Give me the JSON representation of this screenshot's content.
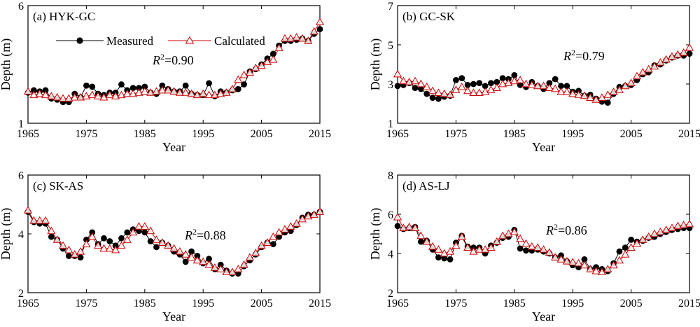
{
  "colors": {
    "measured": "#000000",
    "calculated": "#cc0000",
    "frame": "#000000"
  },
  "legend": {
    "measured": "Measured",
    "calculated": "Calculated"
  },
  "chart_data": [
    {
      "type": "line",
      "title": "(a) HYK-GC",
      "xlabel": "Year",
      "ylabel": "Depth (m)",
      "xlim": [
        1965,
        2015
      ],
      "ylim": [
        1,
        6
      ],
      "xticks": [
        1965,
        1975,
        1985,
        1995,
        2005,
        2015
      ],
      "yticks": [
        1,
        6
      ],
      "r2_prefix": "R",
      "r2_sup": "2",
      "r2_value": "=0.90",
      "x": [
        1965,
        1966,
        1967,
        1968,
        1969,
        1970,
        1971,
        1972,
        1973,
        1974,
        1975,
        1976,
        1977,
        1978,
        1979,
        1980,
        1981,
        1982,
        1983,
        1984,
        1985,
        1986,
        1987,
        1988,
        1989,
        1990,
        1991,
        1992,
        1993,
        1994,
        1995,
        1996,
        1997,
        1998,
        1999,
        2000,
        2001,
        2002,
        2003,
        2004,
        2005,
        2006,
        2007,
        2008,
        2009,
        2010,
        2011,
        2012,
        2013,
        2014,
        2015
      ],
      "series": [
        {
          "name": "Measured",
          "values": [
            2.3,
            2.4,
            2.35,
            2.4,
            2.05,
            2.0,
            1.9,
            1.9,
            2.25,
            2.1,
            2.6,
            2.55,
            2.25,
            2.2,
            2.3,
            2.3,
            2.65,
            2.4,
            2.5,
            2.5,
            2.55,
            2.3,
            2.25,
            2.6,
            2.45,
            2.35,
            2.35,
            2.6,
            2.25,
            2.2,
            2.2,
            2.7,
            2.15,
            2.35,
            2.3,
            2.4,
            2.45,
            2.65,
            3.2,
            3.3,
            3.5,
            3.75,
            3.95,
            4.3,
            4.5,
            4.5,
            4.55,
            4.6,
            4.5,
            4.8,
            5.0
          ]
        },
        {
          "name": "Calculated",
          "values": [
            2.35,
            2.2,
            2.25,
            2.2,
            2.15,
            2.1,
            2.05,
            2.05,
            2.1,
            2.1,
            2.15,
            2.2,
            2.15,
            2.1,
            2.2,
            2.15,
            2.2,
            2.25,
            2.25,
            2.3,
            2.35,
            2.3,
            2.35,
            2.4,
            2.4,
            2.35,
            2.3,
            2.3,
            2.25,
            2.2,
            2.25,
            2.2,
            2.2,
            2.25,
            2.3,
            2.45,
            2.85,
            3.05,
            3.15,
            3.35,
            3.45,
            3.6,
            3.7,
            4.2,
            4.6,
            4.6,
            4.65,
            4.6,
            4.5,
            4.9,
            5.3
          ]
        }
      ]
    },
    {
      "type": "line",
      "title": "(b) GC-SK",
      "xlabel": "Year",
      "ylabel": "Depth (m)",
      "xlim": [
        1965,
        2015
      ],
      "ylim": [
        1,
        7
      ],
      "xticks": [
        1965,
        1975,
        1985,
        1995,
        2005,
        2015
      ],
      "yticks": [
        1,
        3,
        5,
        7
      ],
      "r2_prefix": "R",
      "r2_sup": "2",
      "r2_value": "=0.79",
      "x": [
        1965,
        1966,
        1967,
        1968,
        1969,
        1970,
        1971,
        1972,
        1973,
        1974,
        1975,
        1976,
        1977,
        1978,
        1979,
        1980,
        1981,
        1982,
        1983,
        1984,
        1985,
        1986,
        1987,
        1988,
        1989,
        1990,
        1991,
        1992,
        1993,
        1994,
        1995,
        1996,
        1997,
        1998,
        1999,
        2000,
        2001,
        2002,
        2003,
        2004,
        2005,
        2006,
        2007,
        2008,
        2009,
        2010,
        2011,
        2012,
        2013,
        2014,
        2015
      ],
      "series": [
        {
          "name": "Measured",
          "values": [
            2.9,
            2.95,
            3.05,
            2.8,
            2.75,
            2.5,
            2.3,
            2.25,
            2.35,
            2.4,
            3.2,
            3.3,
            2.95,
            3.0,
            3.05,
            2.9,
            3.05,
            3.1,
            3.3,
            3.25,
            3.45,
            2.95,
            2.85,
            3.1,
            2.9,
            2.75,
            3.05,
            3.25,
            2.9,
            2.9,
            2.6,
            2.65,
            2.4,
            2.45,
            2.25,
            2.1,
            2.05,
            2.5,
            2.85,
            2.9,
            2.95,
            3.2,
            3.5,
            3.6,
            3.95,
            4.0,
            4.2,
            4.35,
            4.45,
            4.45,
            4.55
          ]
        },
        {
          "name": "Calculated",
          "values": [
            3.5,
            3.15,
            3.1,
            3.15,
            3.0,
            2.85,
            2.65,
            2.55,
            2.5,
            2.45,
            2.7,
            2.85,
            2.65,
            2.55,
            2.55,
            2.6,
            2.7,
            2.8,
            3.0,
            3.05,
            3.15,
            3.2,
            3.0,
            2.95,
            2.9,
            2.9,
            2.8,
            2.75,
            2.6,
            2.6,
            2.5,
            2.45,
            2.4,
            2.3,
            2.2,
            2.3,
            2.45,
            2.6,
            2.7,
            2.9,
            3.05,
            3.4,
            3.6,
            3.75,
            3.9,
            4.1,
            4.25,
            4.4,
            4.5,
            4.6,
            4.85
          ]
        }
      ]
    },
    {
      "type": "line",
      "title": "(c) SK-AS",
      "xlabel": "Year",
      "ylabel": "Depth (m)",
      "xlim": [
        1965,
        2015
      ],
      "ylim": [
        2,
        6
      ],
      "xticks": [
        1965,
        1975,
        1985,
        1995,
        2005,
        2015
      ],
      "yticks": [
        2,
        4,
        6
      ],
      "r2_prefix": "R",
      "r2_sup": "2",
      "r2_value": "=0.88",
      "x": [
        1965,
        1966,
        1967,
        1968,
        1969,
        1970,
        1971,
        1972,
        1973,
        1974,
        1975,
        1976,
        1977,
        1978,
        1979,
        1980,
        1981,
        1982,
        1983,
        1984,
        1985,
        1986,
        1987,
        1988,
        1989,
        1990,
        1991,
        1992,
        1993,
        1994,
        1995,
        1996,
        1997,
        1998,
        1999,
        2000,
        2001,
        2002,
        2003,
        2004,
        2005,
        2006,
        2007,
        2008,
        2009,
        2010,
        2011,
        2012,
        2013,
        2014,
        2015
      ],
      "series": [
        {
          "name": "Measured",
          "values": [
            4.75,
            4.4,
            4.35,
            4.35,
            3.9,
            3.8,
            3.5,
            3.25,
            3.25,
            3.2,
            3.8,
            4.05,
            3.65,
            3.85,
            3.75,
            3.6,
            3.85,
            4.05,
            4.15,
            4.1,
            4.05,
            3.75,
            3.55,
            3.7,
            3.6,
            3.4,
            3.3,
            3.05,
            3.4,
            3.25,
            3.0,
            3.15,
            2.8,
            2.95,
            2.75,
            2.65,
            2.65,
            2.9,
            3.1,
            3.3,
            3.55,
            3.7,
            3.65,
            3.9,
            4.05,
            4.1,
            4.3,
            4.55,
            4.65,
            4.65,
            4.75
          ]
        },
        {
          "name": "Calculated",
          "values": [
            4.8,
            4.45,
            4.45,
            4.45,
            4.1,
            3.8,
            3.6,
            3.45,
            3.3,
            3.4,
            3.65,
            3.9,
            3.6,
            3.5,
            3.5,
            3.45,
            3.6,
            3.8,
            4.05,
            4.25,
            4.25,
            4.1,
            3.8,
            3.7,
            3.6,
            3.5,
            3.4,
            3.3,
            3.2,
            3.1,
            3.05,
            2.95,
            2.85,
            2.8,
            2.7,
            2.7,
            2.8,
            2.95,
            3.2,
            3.35,
            3.6,
            3.7,
            3.9,
            4.05,
            4.15,
            4.25,
            4.35,
            4.5,
            4.6,
            4.65,
            4.75
          ]
        }
      ]
    },
    {
      "type": "line",
      "title": "(d) AS-LJ",
      "xlabel": "Year",
      "ylabel": "Depth (m)",
      "xlim": [
        1965,
        2015
      ],
      "ylim": [
        2,
        8
      ],
      "xticks": [
        1965,
        1975,
        1985,
        1995,
        2005,
        2015
      ],
      "yticks": [
        2,
        4,
        6,
        8
      ],
      "r2_prefix": "R",
      "r2_sup": "2",
      "r2_value": "=0.86",
      "x": [
        1965,
        1966,
        1967,
        1968,
        1969,
        1970,
        1971,
        1972,
        1973,
        1974,
        1975,
        1976,
        1977,
        1978,
        1979,
        1980,
        1981,
        1982,
        1983,
        1984,
        1985,
        1986,
        1987,
        1988,
        1989,
        1990,
        1991,
        1992,
        1993,
        1994,
        1995,
        1996,
        1997,
        1998,
        1999,
        2000,
        2001,
        2002,
        2003,
        2004,
        2005,
        2006,
        2007,
        2008,
        2009,
        2010,
        2011,
        2012,
        2013,
        2014,
        2015
      ],
      "series": [
        {
          "name": "Measured",
          "values": [
            5.4,
            5.25,
            5.3,
            5.35,
            4.6,
            4.65,
            4.2,
            3.8,
            3.75,
            3.7,
            4.55,
            4.9,
            4.35,
            4.3,
            4.3,
            4.0,
            4.4,
            4.55,
            4.8,
            4.85,
            5.2,
            4.25,
            4.15,
            4.15,
            4.2,
            4.1,
            4.0,
            3.8,
            3.9,
            3.6,
            3.4,
            3.3,
            3.7,
            3.2,
            3.3,
            3.2,
            3.1,
            3.5,
            4.1,
            4.3,
            4.7,
            4.6,
            4.65,
            4.8,
            4.85,
            5.0,
            5.1,
            5.2,
            5.25,
            5.3,
            5.3
          ]
        },
        {
          "name": "Calculated",
          "values": [
            5.85,
            5.3,
            5.35,
            5.3,
            4.9,
            4.6,
            4.35,
            4.2,
            4.0,
            4.1,
            4.4,
            4.85,
            4.3,
            4.1,
            4.2,
            4.2,
            4.3,
            4.6,
            4.9,
            5.0,
            5.1,
            4.75,
            4.5,
            4.35,
            4.3,
            4.2,
            4.05,
            3.8,
            3.7,
            3.6,
            3.55,
            3.5,
            3.4,
            3.2,
            3.1,
            3.05,
            3.2,
            3.4,
            3.65,
            3.95,
            4.3,
            4.5,
            4.7,
            4.85,
            5.0,
            5.1,
            5.2,
            5.3,
            5.4,
            5.45,
            5.5
          ]
        }
      ]
    }
  ]
}
